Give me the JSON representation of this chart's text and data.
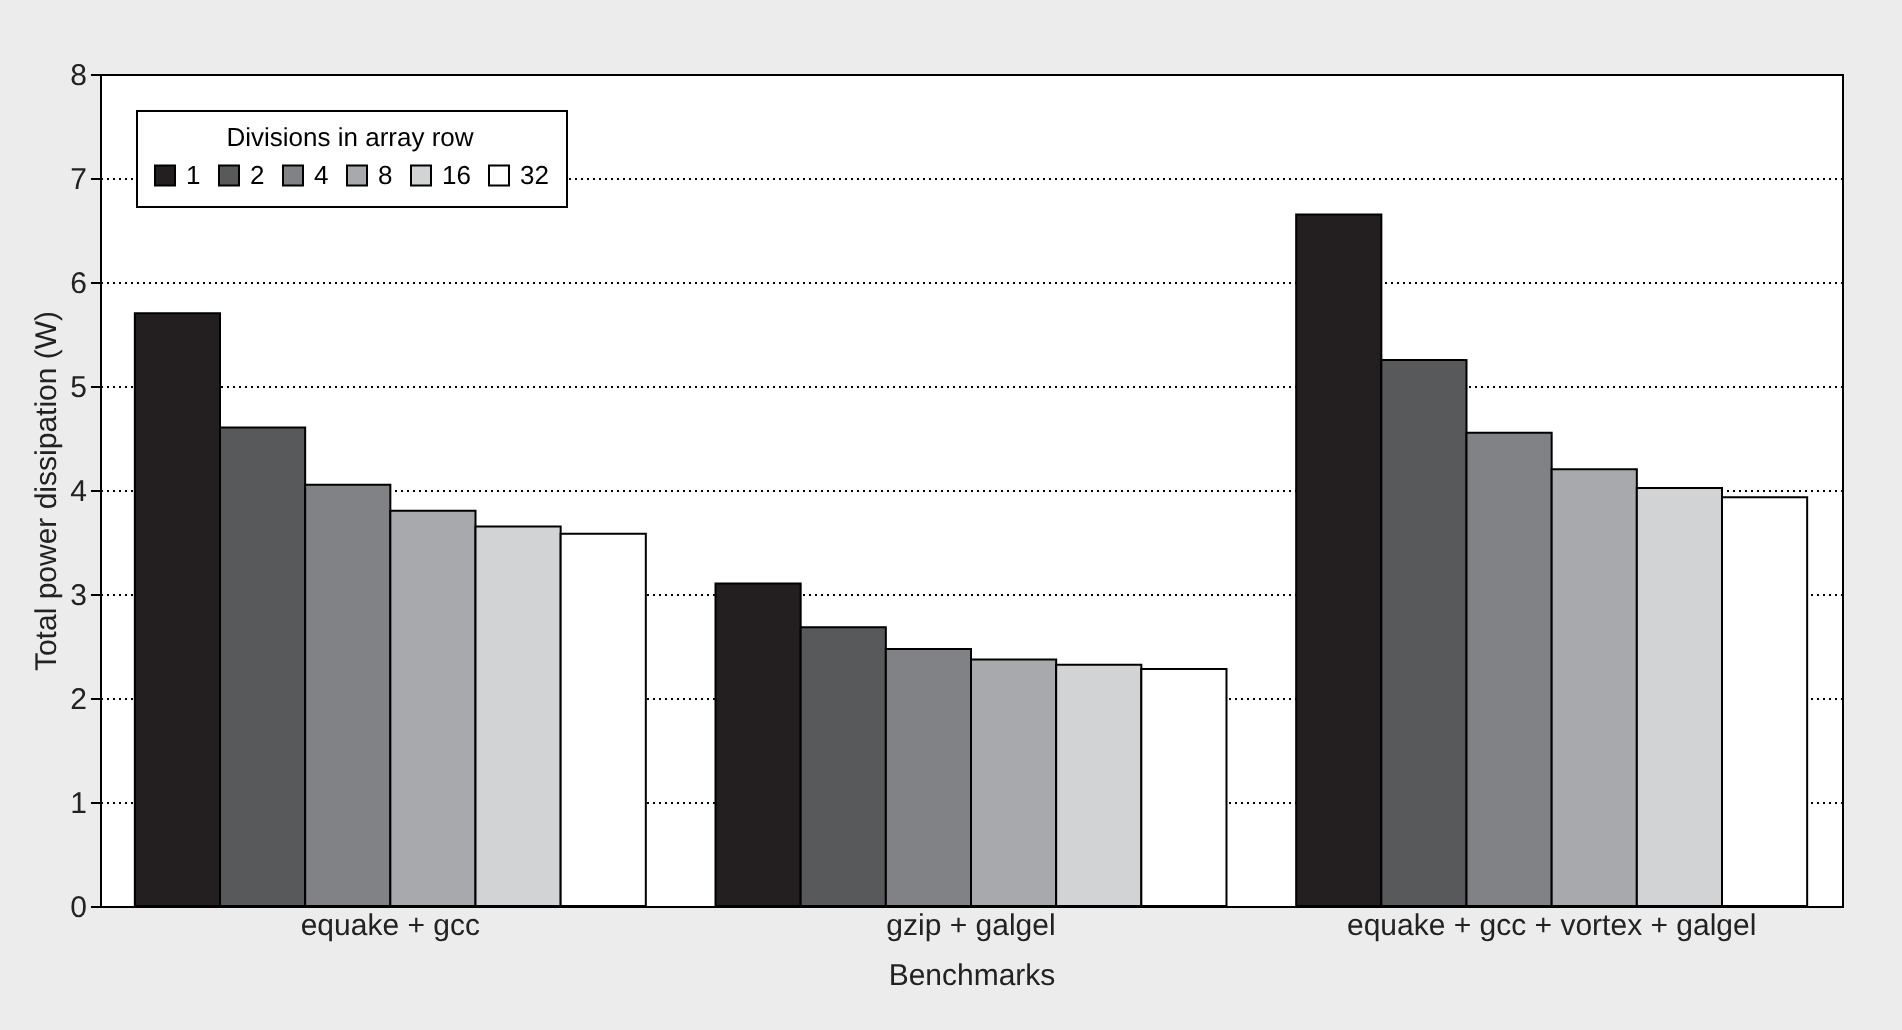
{
  "chart_data": {
    "type": "bar",
    "xlabel": "Benchmarks",
    "ylabel": "Total power dissipation (W)",
    "legend_title": "Divisions in array row",
    "categories": [
      "equake + gcc",
      "gzip + galgel",
      "equake + gcc + vortex + galgel"
    ],
    "series": [
      {
        "name": "1",
        "color": "#231f20",
        "values": [
          5.7,
          3.1,
          6.65
        ]
      },
      {
        "name": "2",
        "color": "#58595b",
        "values": [
          4.6,
          2.68,
          5.25
        ]
      },
      {
        "name": "4",
        "color": "#808285",
        "values": [
          4.05,
          2.47,
          4.55
        ]
      },
      {
        "name": "8",
        "color": "#a7a9ac",
        "values": [
          3.8,
          2.37,
          4.2
        ]
      },
      {
        "name": "16",
        "color": "#d1d3d4",
        "values": [
          3.65,
          2.32,
          4.02
        ]
      },
      {
        "name": "32",
        "color": "#ffffff",
        "values": [
          3.58,
          2.28,
          3.93
        ]
      }
    ],
    "ylim": [
      0,
      8
    ],
    "yticks": [
      0,
      1,
      2,
      3,
      4,
      5,
      6,
      7,
      8
    ],
    "grid": "y",
    "legend": "top left"
  }
}
